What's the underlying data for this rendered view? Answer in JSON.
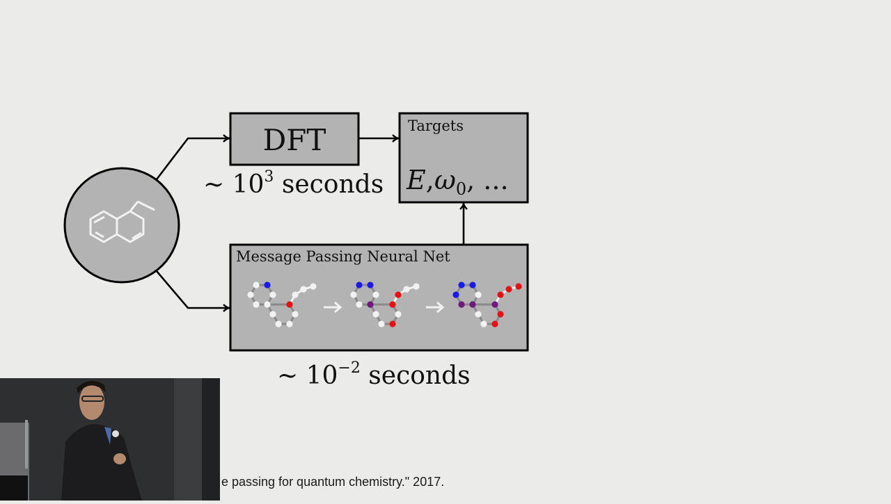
{
  "diagram": {
    "dft_label": "DFT",
    "dft_time": {
      "prefix": "~ 10",
      "exponent": "3",
      "suffix": " seconds"
    },
    "targets_title": "Targets",
    "targets_values": {
      "e": "E",
      "comma1": ",",
      "omega": "ω",
      "omega_sub": "0",
      "rest": ", ..."
    },
    "mpnn_title": "Message Passing Neural Net",
    "mpnn_time": {
      "prefix": "~ 10",
      "exponent": "−2",
      "suffix": " seconds"
    },
    "colors": {
      "node_white": "#f2f2f2",
      "node_blue": "#1a1aee",
      "node_red": "#e81010",
      "node_purple": "#701880",
      "box_fill": "#b3b3b3"
    }
  },
  "citation": "e passing for quantum chemistry.\" 2017."
}
